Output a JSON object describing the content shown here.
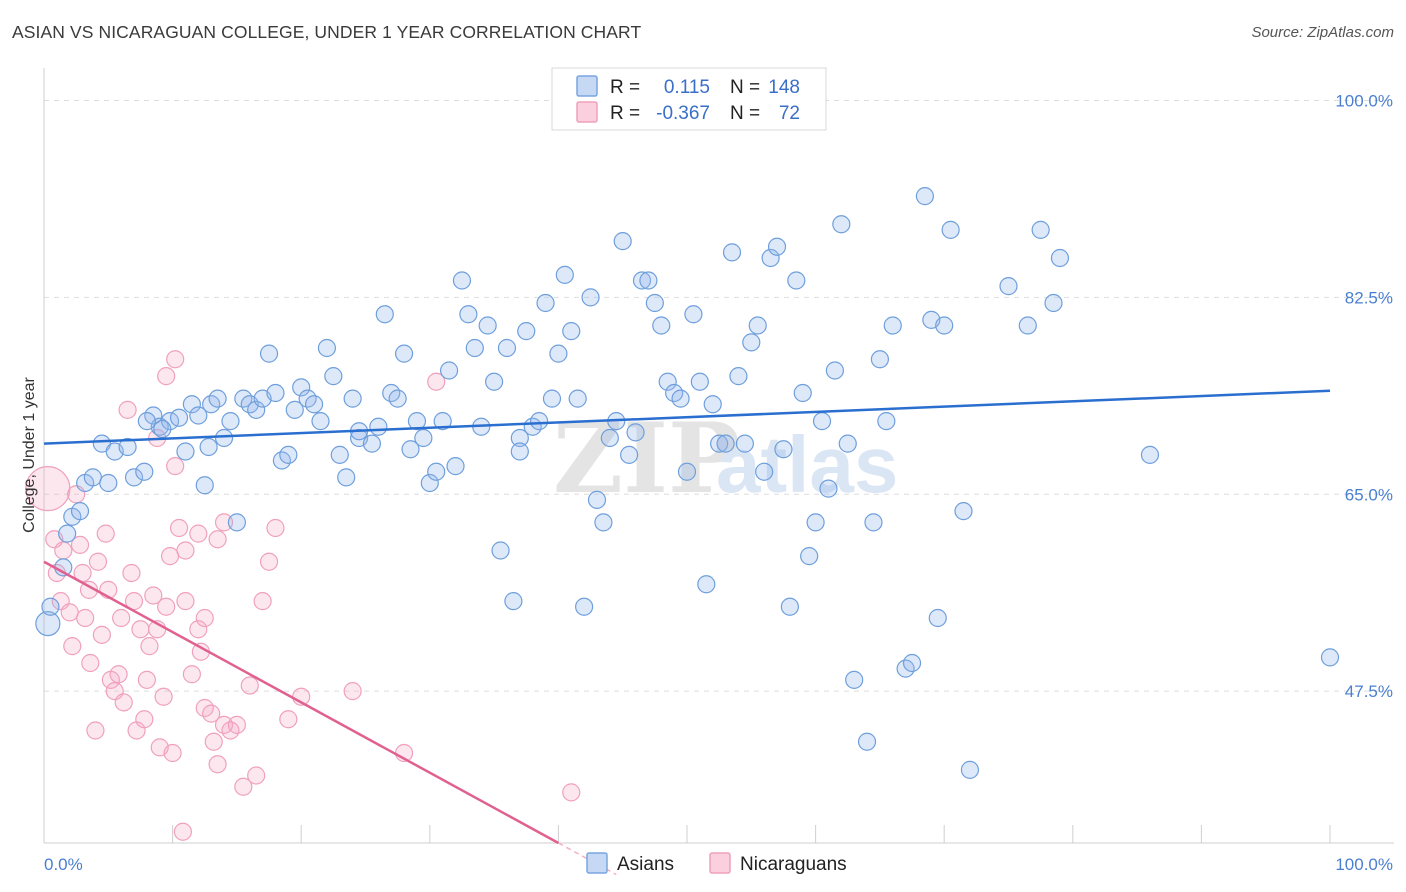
{
  "title": "ASIAN VS NICARAGUAN COLLEGE, UNDER 1 YEAR CORRELATION CHART",
  "source": "Source: ZipAtlas.com",
  "colors": {
    "asian": "#7aa6e0",
    "asian_line": "#2a6fd0",
    "nicaraguan": "#f0a0bc",
    "nicaraguan_line": "#e06090",
    "label": "#4a7fd0"
  },
  "legend": {
    "r_label": "R =",
    "n_label": "N =",
    "asian": {
      "r": "0.115",
      "n": "148"
    },
    "nicaraguan": {
      "r": "-0.367",
      "n": "72"
    }
  },
  "watermark": {
    "zip": "ZIP",
    "atlas": "atlas"
  },
  "chart_data": {
    "type": "scatter",
    "title": "ASIAN VS NICARAGUAN COLLEGE, UNDER 1 YEAR CORRELATION CHART",
    "xlabel": "",
    "ylabel": "College, Under 1 year",
    "xlim": [
      0,
      100
    ],
    "ylim": [
      34,
      102
    ],
    "x_tick_labels": [
      "0.0%",
      "100.0%"
    ],
    "y_ticks": [
      47.5,
      65.0,
      82.5,
      100.0
    ],
    "y_tick_labels": [
      "47.5%",
      "65.0%",
      "82.5%",
      "100.0%"
    ],
    "legend_position": "top-center",
    "series": [
      {
        "name": "Asians",
        "trend": {
          "x": [
            0,
            100
          ],
          "y": [
            69.5,
            74.2
          ]
        },
        "points": [
          [
            0.3,
            53.5
          ],
          [
            0.5,
            55.0
          ],
          [
            1.5,
            58.5
          ],
          [
            1.8,
            61.5
          ],
          [
            2.2,
            63.0
          ],
          [
            2.8,
            63.5
          ],
          [
            3.2,
            66.0
          ],
          [
            3.8,
            66.5
          ],
          [
            4.5,
            69.5
          ],
          [
            5.0,
            66.0
          ],
          [
            5.5,
            68.8
          ],
          [
            6.5,
            69.2
          ],
          [
            7.0,
            66.5
          ],
          [
            7.8,
            67.0
          ],
          [
            8.5,
            72.0
          ],
          [
            9.0,
            71.0
          ],
          [
            9.8,
            71.5
          ],
          [
            10.5,
            71.8
          ],
          [
            11.0,
            68.8
          ],
          [
            11.5,
            73.0
          ],
          [
            12.0,
            72.0
          ],
          [
            12.5,
            65.8
          ],
          [
            13.0,
            73.0
          ],
          [
            13.5,
            73.5
          ],
          [
            14.0,
            70.0
          ],
          [
            14.5,
            71.5
          ],
          [
            15.0,
            62.5
          ],
          [
            15.5,
            73.5
          ],
          [
            16.0,
            73.0
          ],
          [
            16.5,
            72.5
          ],
          [
            17.0,
            73.5
          ],
          [
            17.5,
            77.5
          ],
          [
            18.0,
            74.0
          ],
          [
            18.5,
            68.0
          ],
          [
            19.0,
            68.5
          ],
          [
            19.5,
            72.5
          ],
          [
            20.0,
            74.5
          ],
          [
            20.5,
            73.5
          ],
          [
            21.0,
            73.0
          ],
          [
            21.5,
            71.5
          ],
          [
            22.0,
            78.0
          ],
          [
            22.5,
            75.5
          ],
          [
            23.0,
            68.5
          ],
          [
            23.5,
            66.5
          ],
          [
            24.0,
            73.5
          ],
          [
            24.5,
            70.0
          ],
          [
            25.5,
            69.5
          ],
          [
            26.0,
            71.0
          ],
          [
            26.5,
            81.0
          ],
          [
            27.0,
            74.0
          ],
          [
            27.5,
            73.5
          ],
          [
            28.0,
            77.5
          ],
          [
            28.5,
            69.0
          ],
          [
            29.0,
            71.5
          ],
          [
            29.5,
            70.0
          ],
          [
            30.0,
            66.0
          ],
          [
            30.5,
            67.0
          ],
          [
            31.0,
            71.5
          ],
          [
            31.5,
            76.0
          ],
          [
            32.0,
            67.5
          ],
          [
            32.5,
            84.0
          ],
          [
            33.0,
            81.0
          ],
          [
            33.5,
            78.0
          ],
          [
            34.0,
            71.0
          ],
          [
            34.5,
            80.0
          ],
          [
            35.0,
            75.0
          ],
          [
            35.5,
            60.0
          ],
          [
            36.0,
            78.0
          ],
          [
            36.5,
            55.5
          ],
          [
            37.0,
            70.0
          ],
          [
            37.5,
            79.5
          ],
          [
            38.0,
            71.0
          ],
          [
            38.5,
            71.5
          ],
          [
            39.0,
            82.0
          ],
          [
            39.5,
            73.5
          ],
          [
            40.0,
            77.5
          ],
          [
            40.5,
            84.5
          ],
          [
            41.0,
            79.5
          ],
          [
            41.5,
            73.5
          ],
          [
            42.0,
            55.0
          ],
          [
            42.5,
            82.5
          ],
          [
            43.0,
            64.5
          ],
          [
            43.5,
            62.5
          ],
          [
            44.0,
            70.0
          ],
          [
            44.5,
            71.5
          ],
          [
            45.0,
            87.5
          ],
          [
            45.5,
            68.5
          ],
          [
            46.0,
            70.5
          ],
          [
            46.5,
            84.0
          ],
          [
            47.0,
            84.0
          ],
          [
            47.5,
            82.0
          ],
          [
            48.0,
            80.0
          ],
          [
            48.5,
            75.0
          ],
          [
            49.0,
            74.0
          ],
          [
            49.5,
            73.5
          ],
          [
            50.0,
            67.0
          ],
          [
            50.5,
            81.0
          ],
          [
            51.0,
            75.0
          ],
          [
            51.5,
            57.0
          ],
          [
            52.0,
            73.0
          ],
          [
            52.5,
            69.5
          ],
          [
            53.0,
            69.5
          ],
          [
            53.5,
            86.5
          ],
          [
            54.0,
            75.5
          ],
          [
            54.5,
            69.5
          ],
          [
            55.0,
            78.5
          ],
          [
            55.5,
            80.0
          ],
          [
            56.0,
            67.0
          ],
          [
            56.5,
            86.0
          ],
          [
            57.0,
            87.0
          ],
          [
            57.5,
            69.0
          ],
          [
            58.0,
            55.0
          ],
          [
            58.5,
            84.0
          ],
          [
            59.0,
            74.0
          ],
          [
            59.5,
            59.5
          ],
          [
            60.0,
            62.5
          ],
          [
            60.5,
            71.5
          ],
          [
            61.0,
            65.5
          ],
          [
            61.5,
            76.0
          ],
          [
            62.0,
            89.0
          ],
          [
            62.5,
            69.5
          ],
          [
            63.0,
            48.5
          ],
          [
            64.0,
            43.0
          ],
          [
            64.5,
            62.5
          ],
          [
            65.0,
            77.0
          ],
          [
            65.5,
            71.5
          ],
          [
            66.0,
            80.0
          ],
          [
            67.0,
            49.5
          ],
          [
            67.5,
            50.0
          ],
          [
            68.5,
            91.5
          ],
          [
            69.0,
            80.5
          ],
          [
            69.5,
            54.0
          ],
          [
            70.0,
            80.0
          ],
          [
            70.5,
            88.5
          ],
          [
            71.5,
            63.5
          ],
          [
            72.0,
            40.5
          ],
          [
            75.0,
            83.5
          ],
          [
            76.5,
            80.0
          ],
          [
            77.5,
            88.5
          ],
          [
            78.5,
            82.0
          ],
          [
            79.0,
            86.0
          ],
          [
            86.0,
            68.5
          ],
          [
            100.0,
            50.5
          ],
          [
            8.0,
            71.5
          ],
          [
            9.2,
            70.8
          ],
          [
            12.8,
            69.2
          ],
          [
            24.5,
            70.6
          ],
          [
            37.0,
            68.8
          ]
        ]
      },
      {
        "name": "Nicaraguans",
        "trend": {
          "x": [
            0,
            40
          ],
          "y": [
            59.0,
            34.0
          ]
        },
        "trend_dashed": {
          "x": [
            40,
            44.5
          ],
          "y": [
            34.0,
            31.2
          ]
        },
        "points": [
          [
            0.3,
            65.5
          ],
          [
            0.8,
            61.0
          ],
          [
            1.0,
            58.0
          ],
          [
            1.3,
            55.5
          ],
          [
            1.5,
            60.0
          ],
          [
            2.0,
            54.5
          ],
          [
            2.2,
            51.5
          ],
          [
            2.5,
            65.0
          ],
          [
            2.8,
            60.5
          ],
          [
            3.0,
            58.0
          ],
          [
            3.2,
            54.0
          ],
          [
            3.5,
            56.5
          ],
          [
            3.6,
            50.0
          ],
          [
            4.0,
            44.0
          ],
          [
            4.2,
            59.0
          ],
          [
            4.5,
            52.5
          ],
          [
            4.8,
            61.5
          ],
          [
            5.0,
            56.5
          ],
          [
            5.2,
            48.5
          ],
          [
            5.5,
            47.5
          ],
          [
            5.8,
            49.0
          ],
          [
            6.0,
            54.0
          ],
          [
            6.2,
            46.5
          ],
          [
            6.5,
            72.5
          ],
          [
            6.8,
            58.0
          ],
          [
            7.0,
            55.5
          ],
          [
            7.2,
            44.0
          ],
          [
            7.5,
            53.0
          ],
          [
            7.8,
            45.0
          ],
          [
            8.0,
            48.5
          ],
          [
            8.2,
            51.5
          ],
          [
            8.5,
            56.0
          ],
          [
            8.8,
            53.0
          ],
          [
            9.0,
            42.5
          ],
          [
            9.3,
            47.0
          ],
          [
            9.5,
            55.0
          ],
          [
            9.8,
            59.5
          ],
          [
            10.0,
            42.0
          ],
          [
            10.2,
            77.0
          ],
          [
            10.5,
            62.0
          ],
          [
            10.8,
            35.0
          ],
          [
            11.0,
            55.5
          ],
          [
            11.5,
            49.0
          ],
          [
            12.0,
            53.0
          ],
          [
            12.2,
            51.0
          ],
          [
            12.5,
            46.0
          ],
          [
            13.0,
            45.5
          ],
          [
            13.2,
            43.0
          ],
          [
            13.5,
            41.0
          ],
          [
            14.0,
            44.5
          ],
          [
            14.5,
            44.0
          ],
          [
            15.0,
            44.5
          ],
          [
            15.5,
            39.0
          ],
          [
            16.0,
            48.0
          ],
          [
            16.5,
            40.0
          ],
          [
            17.0,
            55.5
          ],
          [
            17.5,
            59.0
          ],
          [
            18.0,
            62.0
          ],
          [
            8.8,
            70.0
          ],
          [
            9.5,
            75.5
          ],
          [
            10.2,
            67.5
          ],
          [
            11.0,
            60.0
          ],
          [
            12.0,
            61.5
          ],
          [
            12.5,
            54.0
          ],
          [
            13.5,
            61.0
          ],
          [
            14.0,
            62.5
          ],
          [
            19.0,
            45.0
          ],
          [
            20.0,
            47.0
          ],
          [
            24.0,
            47.5
          ],
          [
            28.0,
            42.0
          ],
          [
            30.5,
            75.0
          ],
          [
            41.0,
            38.5
          ]
        ]
      }
    ]
  },
  "bottom_legend": {
    "asian": "Asians",
    "nicaraguan": "Nicaraguans"
  }
}
